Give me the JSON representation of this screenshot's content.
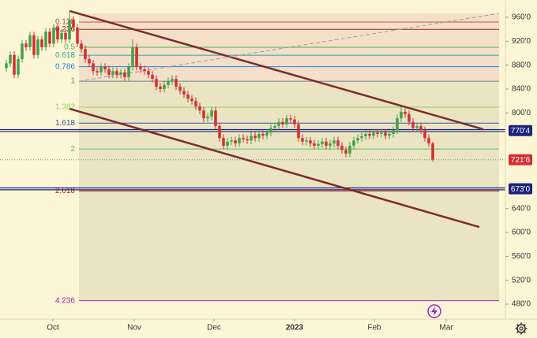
{
  "chart_data": {
    "type": "candlestick",
    "x": [
      0,
      1,
      2,
      3,
      4,
      5,
      6,
      7,
      8,
      9,
      10,
      11,
      12,
      13,
      14,
      15,
      16,
      17,
      18,
      19,
      20,
      21,
      22,
      23,
      24,
      25,
      26,
      27,
      28,
      29,
      30,
      31,
      32,
      33,
      34,
      35,
      36,
      37,
      38,
      39,
      40,
      41,
      42,
      43,
      44,
      45,
      46,
      47,
      48,
      49,
      50,
      51,
      52,
      53,
      54,
      55,
      56,
      57,
      58,
      59,
      60,
      61,
      62,
      63,
      64,
      65,
      66,
      67,
      68,
      69,
      70,
      71,
      72,
      73,
      74,
      75,
      76,
      77,
      78,
      79,
      80,
      81,
      82,
      83,
      84,
      85,
      86,
      87,
      88,
      89,
      90,
      91,
      92,
      93,
      94,
      95,
      96,
      97,
      98,
      99,
      100,
      101,
      102,
      103,
      104,
      105,
      106,
      107,
      108
    ],
    "open": [
      875,
      883,
      897,
      864,
      890,
      916,
      910,
      930,
      897,
      923,
      910,
      936,
      916,
      943,
      923,
      934,
      923,
      956,
      943,
      916,
      907,
      890,
      883,
      870,
      868,
      877,
      873,
      864,
      870,
      864,
      868,
      860,
      877,
      910,
      877,
      873,
      870,
      864,
      857,
      844,
      840,
      847,
      853,
      857,
      844,
      837,
      831,
      824,
      820,
      811,
      804,
      791,
      794,
      804,
      778,
      758,
      745,
      752,
      754,
      749,
      758,
      756,
      754,
      762,
      758,
      765,
      762,
      767,
      775,
      778,
      785,
      781,
      791,
      789,
      781,
      758,
      752,
      754,
      749,
      745,
      748,
      752,
      745,
      749,
      754,
      745,
      738,
      732,
      745,
      754,
      758,
      761,
      765,
      762,
      767,
      765,
      767,
      762,
      765,
      771,
      791,
      802,
      798,
      785,
      775,
      778,
      771,
      758,
      749
    ],
    "high": [
      889,
      903,
      903,
      896,
      922,
      922,
      936,
      936,
      929,
      929,
      942,
      942,
      949,
      949,
      940,
      940,
      970,
      962,
      949,
      922,
      913,
      896,
      889,
      876,
      883,
      883,
      879,
      876,
      876,
      874,
      874,
      883,
      923,
      916,
      883,
      879,
      876,
      870,
      863,
      850,
      853,
      859,
      863,
      863,
      850,
      843,
      837,
      830,
      826,
      817,
      810,
      800,
      810,
      810,
      784,
      764,
      758,
      760,
      760,
      764,
      764,
      762,
      768,
      768,
      771,
      771,
      773,
      781,
      784,
      791,
      791,
      797,
      797,
      795,
      787,
      764,
      760,
      760,
      755,
      754,
      758,
      758,
      755,
      760,
      760,
      751,
      744,
      751,
      760,
      764,
      767,
      771,
      771,
      773,
      773,
      773,
      773,
      771,
      777,
      797,
      810,
      808,
      804,
      791,
      784,
      784,
      777,
      764,
      752
    ],
    "low": [
      869,
      877,
      858,
      858,
      884,
      904,
      904,
      891,
      891,
      904,
      904,
      910,
      910,
      917,
      917,
      917,
      917,
      937,
      910,
      901,
      884,
      877,
      864,
      862,
      862,
      867,
      858,
      858,
      858,
      858,
      854,
      854,
      871,
      871,
      867,
      864,
      858,
      851,
      838,
      834,
      834,
      841,
      847,
      838,
      831,
      825,
      818,
      814,
      805,
      798,
      785,
      785,
      788,
      772,
      752,
      739,
      739,
      746,
      743,
      743,
      750,
      748,
      748,
      752,
      752,
      756,
      756,
      761,
      769,
      772,
      775,
      775,
      783,
      775,
      752,
      746,
      746,
      743,
      739,
      739,
      742,
      739,
      739,
      743,
      739,
      732,
      726,
      726,
      739,
      748,
      752,
      755,
      756,
      756,
      759,
      759,
      756,
      756,
      759,
      765,
      785,
      792,
      779,
      769,
      769,
      765,
      752,
      743,
      718
    ],
    "close": [
      883,
      897,
      864,
      890,
      916,
      910,
      930,
      897,
      923,
      910,
      936,
      916,
      943,
      923,
      934,
      923,
      956,
      943,
      916,
      907,
      890,
      883,
      870,
      868,
      877,
      873,
      864,
      870,
      864,
      868,
      860,
      877,
      910,
      877,
      873,
      870,
      864,
      857,
      844,
      840,
      847,
      853,
      857,
      844,
      837,
      831,
      824,
      820,
      811,
      804,
      791,
      794,
      804,
      778,
      758,
      745,
      752,
      754,
      749,
      758,
      756,
      754,
      762,
      758,
      765,
      762,
      767,
      775,
      778,
      785,
      781,
      791,
      789,
      781,
      758,
      752,
      754,
      749,
      745,
      748,
      752,
      745,
      749,
      754,
      745,
      738,
      732,
      745,
      754,
      758,
      761,
      765,
      762,
      767,
      765,
      767,
      762,
      765,
      771,
      791,
      802,
      798,
      785,
      775,
      778,
      771,
      758,
      749,
      721.75
    ],
    "up_color": "#43a047",
    "down_color": "#d32f2f",
    "xlim": [
      -1.6,
      126.4
    ],
    "ylim": [
      455,
      989
    ],
    "xticks": [
      {
        "value": 11.8,
        "label": "Oct"
      },
      {
        "value": 32.4,
        "label": "Nov"
      },
      {
        "value": 52.6,
        "label": "Dec"
      },
      {
        "value": 73,
        "label": "2023"
      },
      {
        "value": 93.2,
        "label": "Feb"
      },
      {
        "value": 111.4,
        "label": "Mar"
      }
    ],
    "yticks": [
      {
        "value": 960,
        "label": "960'0"
      },
      {
        "value": 920,
        "label": "920'0"
      },
      {
        "value": 880,
        "label": "880'0"
      },
      {
        "value": 840,
        "label": "840'0"
      },
      {
        "value": 800,
        "label": "800'0"
      },
      {
        "value": 640,
        "label": "640'0"
      },
      {
        "value": 600,
        "label": "600'0"
      },
      {
        "value": 560,
        "label": "560'0"
      },
      {
        "value": 520,
        "label": "520'0"
      },
      {
        "value": 480,
        "label": "480'0"
      }
    ],
    "price_lines": [
      {
        "value": 770.5,
        "label": "770'4",
        "color": "#1a237e",
        "style": "double"
      },
      {
        "value": 721.75,
        "label": "721'6",
        "color": "#d32f2f",
        "style": "dotted"
      },
      {
        "value": 673,
        "label": "673'0",
        "color": "#1a237e",
        "style": "double"
      }
    ],
    "fib": {
      "from": 966.6,
      "to": 853.1,
      "x": [
        18.4,
        124.8
      ],
      "levels": [
        0.128,
        0.236,
        0.5,
        0.618,
        0.786,
        1,
        1.382,
        1.618,
        2,
        2.618,
        4.236
      ],
      "colors": [
        "#c0504d",
        "#8b2a2a",
        "#4caf50",
        "#26a69a",
        "#1e88e5",
        "#787b86",
        "#9ccc65",
        "#3f51b5",
        "#66bb6a",
        "#b71c1c",
        "#9c27b0"
      ],
      "fills": [
        "#f4dfc8",
        "#ebe4c2"
      ]
    },
    "trendlines": [
      {
        "x": [
          16,
          120.8
        ],
        "y": [
          970.6,
          772.7
        ],
        "color": "#7b2c2c",
        "style": "solid"
      },
      {
        "x": [
          16,
          119.8
        ],
        "y": [
          807,
          609
        ],
        "color": "#7b2c2c",
        "style": "solid"
      },
      {
        "x": [
          18.4,
          124.8
        ],
        "y": [
          853.1,
          966.6
        ],
        "color": "#9e9e9e",
        "style": "dashed"
      }
    ]
  }
}
